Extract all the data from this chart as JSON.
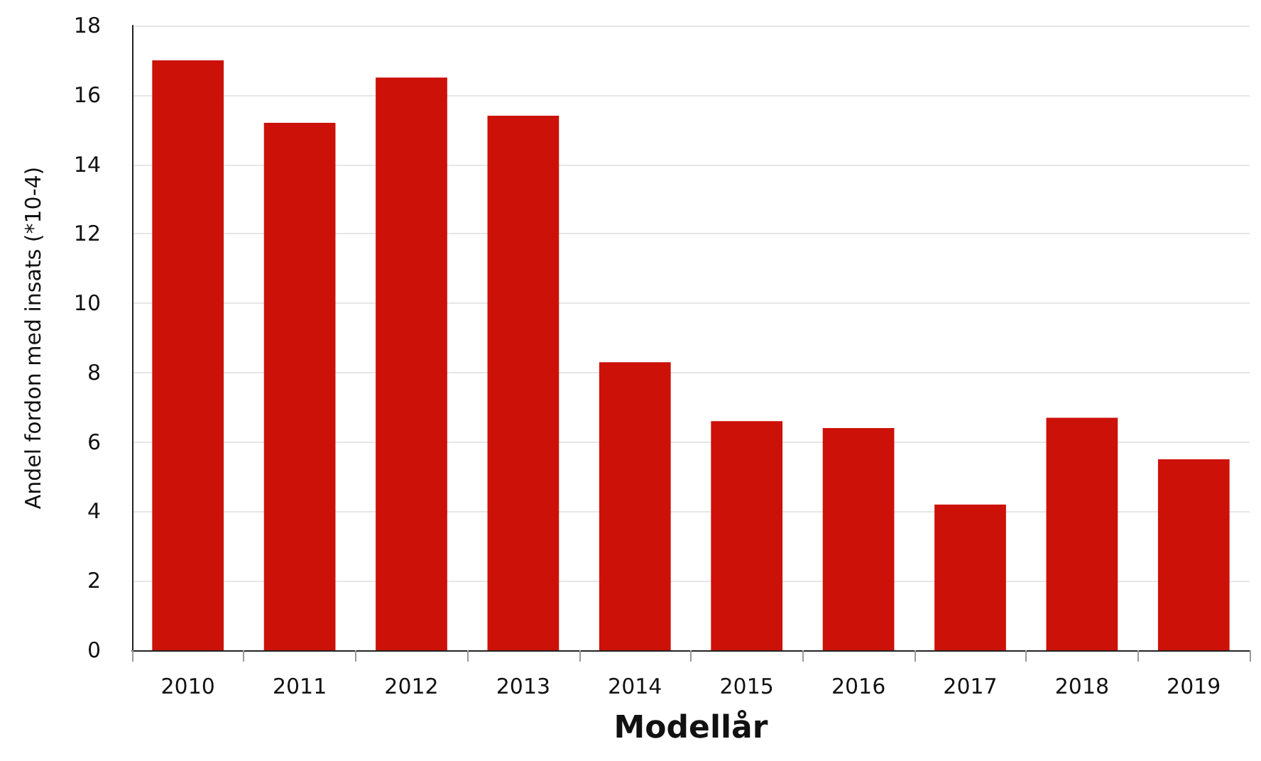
{
  "chart_data": {
    "type": "bar",
    "xlabel": "Modellår",
    "ylabel": "Andel fordon med insats (*10-4)",
    "categories": [
      "2010",
      "2011",
      "2012",
      "2013",
      "2014",
      "2015",
      "2016",
      "2017",
      "2018",
      "2019"
    ],
    "values": [
      17.0,
      15.2,
      16.5,
      15.4,
      8.3,
      6.6,
      6.4,
      4.2,
      6.7,
      5.5
    ],
    "color": "#cc1109",
    "ylim": [
      0,
      18
    ],
    "yticks": [
      0,
      2,
      4,
      6,
      8,
      10,
      12,
      14,
      16,
      18
    ],
    "grid": "y"
  }
}
